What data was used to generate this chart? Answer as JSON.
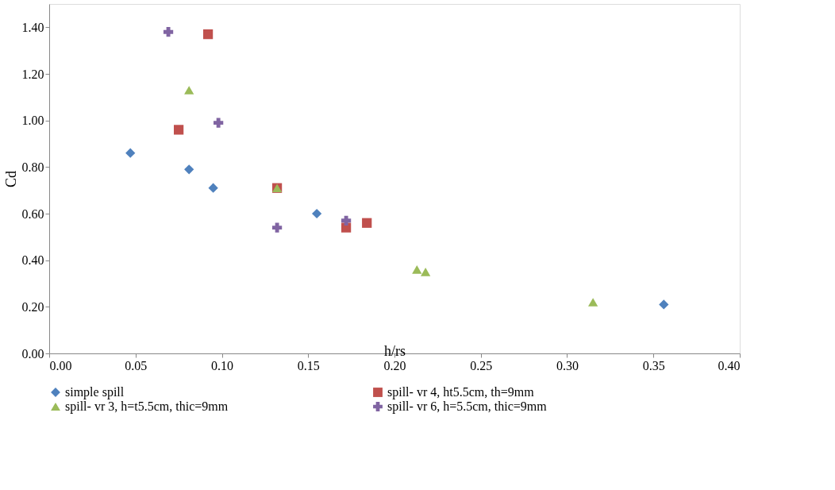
{
  "chart_data": {
    "type": "scatter",
    "xlabel": "h/rs",
    "ylabel": "Cd",
    "xlim": [
      0,
      0.4
    ],
    "xticks": [
      {
        "value": 0,
        "label": "0.00"
      },
      {
        "value": 0.05,
        "label": "0.05"
      },
      {
        "value": 0.1,
        "label": "0.10"
      },
      {
        "value": 0.15,
        "label": "0.15"
      },
      {
        "value": 0.2,
        "label": "0.20"
      },
      {
        "value": 0.25,
        "label": "0.25"
      },
      {
        "value": 0.3,
        "label": "0.30"
      },
      {
        "value": 0.35,
        "label": "0.35"
      },
      {
        "value": 0.4,
        "label": "0.40"
      }
    ],
    "ylim": [
      0,
      1.5
    ],
    "yticks": [
      {
        "value": 0,
        "label": "0.00"
      },
      {
        "value": 0.2,
        "label": "0.20"
      },
      {
        "value": 0.4,
        "label": "0.40"
      },
      {
        "value": 0.6,
        "label": "0.60"
      },
      {
        "value": 0.8,
        "label": "0.80"
      },
      {
        "value": 1.0,
        "label": "1.00"
      },
      {
        "value": 1.2,
        "label": "1.20"
      },
      {
        "value": 1.4,
        "label": "1.40"
      }
    ],
    "grid": false,
    "legend": "bottom",
    "series": [
      {
        "name": "simple spill",
        "color": "#4f81bd",
        "marker": "diamond",
        "x": [
          0.047,
          0.081,
          0.095,
          0.155,
          0.356
        ],
        "values": [
          0.86,
          0.79,
          0.71,
          0.6,
          0.21
        ]
      },
      {
        "name": "spill- vr 4, ht5.5cm, th=9mm",
        "color": "#c0504d",
        "marker": "square",
        "x": [
          0.092,
          0.075,
          0.132,
          0.172,
          0.184
        ],
        "values": [
          1.37,
          0.96,
          0.71,
          0.54,
          0.56
        ]
      },
      {
        "name": "spill- vr 3, h=t5.5cm, thic=9mm",
        "color": "#9bbb59",
        "marker": "triangle",
        "x": [
          0.081,
          0.132,
          0.213,
          0.218,
          0.315
        ],
        "values": [
          1.13,
          0.71,
          0.36,
          0.35,
          0.22
        ]
      },
      {
        "name": "spill- vr 6, h=5.5cm, thic=9mm",
        "color": "#8064a2",
        "marker": "cross",
        "x": [
          0.069,
          0.098,
          0.132,
          0.172
        ],
        "values": [
          1.38,
          0.99,
          0.54,
          0.57
        ]
      }
    ]
  }
}
